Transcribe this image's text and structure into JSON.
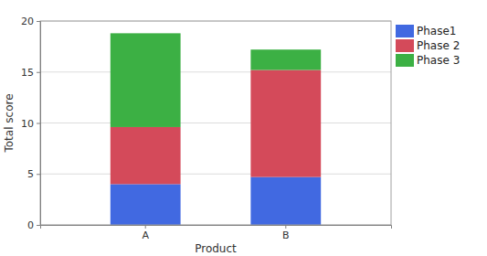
{
  "chart_data": {
    "type": "bar",
    "stacked": true,
    "x_label": "Product",
    "y_label": "Total score",
    "categories": [
      "A",
      "B"
    ],
    "series": [
      {
        "name": "Phase1",
        "color": "#4169e1",
        "values": [
          4.0,
          4.7
        ]
      },
      {
        "name": "Phase 2",
        "color": "#d44a5a",
        "values": [
          5.6,
          10.5
        ]
      },
      {
        "name": "Phase 3",
        "color": "#3cb044",
        "values": [
          9.2,
          2.0
        ]
      }
    ],
    "ylim": [
      0,
      20
    ],
    "yticks": [
      0,
      5,
      10,
      15,
      20
    ],
    "grid": true,
    "legend": "right"
  }
}
